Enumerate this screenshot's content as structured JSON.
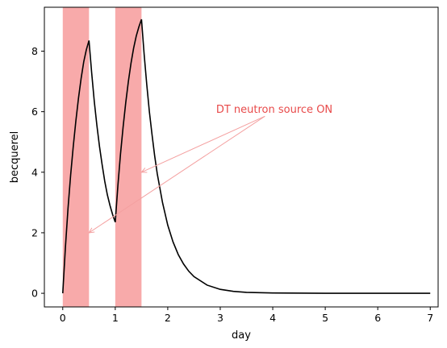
{
  "chart_data": {
    "type": "line",
    "xlabel": "day",
    "ylabel": "becquerel",
    "xlim": [
      -0.35,
      7.15
    ],
    "ylim": [
      -0.45,
      9.45
    ],
    "x_ticks": [
      "0",
      "1",
      "2",
      "3",
      "4",
      "5",
      "6",
      "7"
    ],
    "y_ticks": [
      "0",
      "2",
      "4",
      "6",
      "8"
    ],
    "grid": false,
    "line_color": "#000000",
    "shade_color": "#f8aaaa",
    "shaded_intervals": [
      [
        0,
        0.5
      ],
      [
        1.0,
        1.5
      ]
    ],
    "series": [
      {
        "points": [
          [
            0,
            0
          ],
          [
            0.05,
            1.5
          ],
          [
            0.1,
            2.8
          ],
          [
            0.15,
            3.9
          ],
          [
            0.2,
            4.85
          ],
          [
            0.25,
            5.7
          ],
          [
            0.3,
            6.45
          ],
          [
            0.35,
            7.1
          ],
          [
            0.4,
            7.65
          ],
          [
            0.45,
            8.05
          ],
          [
            0.5,
            8.35
          ],
          [
            0.55,
            7.3
          ],
          [
            0.6,
            6.35
          ],
          [
            0.65,
            5.55
          ],
          [
            0.7,
            4.85
          ],
          [
            0.75,
            4.25
          ],
          [
            0.8,
            3.7
          ],
          [
            0.85,
            3.25
          ],
          [
            0.9,
            2.9
          ],
          [
            0.95,
            2.6
          ],
          [
            1.0,
            2.35
          ],
          [
            1.05,
            3.55
          ],
          [
            1.1,
            4.6
          ],
          [
            1.15,
            5.5
          ],
          [
            1.2,
            6.3
          ],
          [
            1.25,
            7.0
          ],
          [
            1.3,
            7.6
          ],
          [
            1.35,
            8.1
          ],
          [
            1.4,
            8.5
          ],
          [
            1.45,
            8.8
          ],
          [
            1.5,
            9.05
          ],
          [
            1.55,
            7.9
          ],
          [
            1.6,
            6.9
          ],
          [
            1.65,
            6.0
          ],
          [
            1.7,
            5.25
          ],
          [
            1.75,
            4.55
          ],
          [
            1.8,
            3.95
          ],
          [
            1.9,
            3.0
          ],
          [
            2.0,
            2.25
          ],
          [
            2.1,
            1.7
          ],
          [
            2.2,
            1.28
          ],
          [
            2.3,
            0.97
          ],
          [
            2.4,
            0.73
          ],
          [
            2.5,
            0.55
          ],
          [
            2.75,
            0.27
          ],
          [
            3.0,
            0.13
          ],
          [
            3.25,
            0.065
          ],
          [
            3.5,
            0.032
          ],
          [
            4.0,
            0.01
          ],
          [
            5.0,
            0.002
          ],
          [
            6.0,
            0.0005
          ],
          [
            7.0,
            0.0
          ]
        ]
      }
    ],
    "annotation": {
      "text": "DT neutron source ON",
      "color": "#e84a4a",
      "arrow_color": "#f4a0a0",
      "anchor": [
        3.85,
        5.85
      ],
      "targets": [
        [
          1.5,
          4.0
        ],
        [
          0.5,
          2.0
        ]
      ]
    }
  }
}
